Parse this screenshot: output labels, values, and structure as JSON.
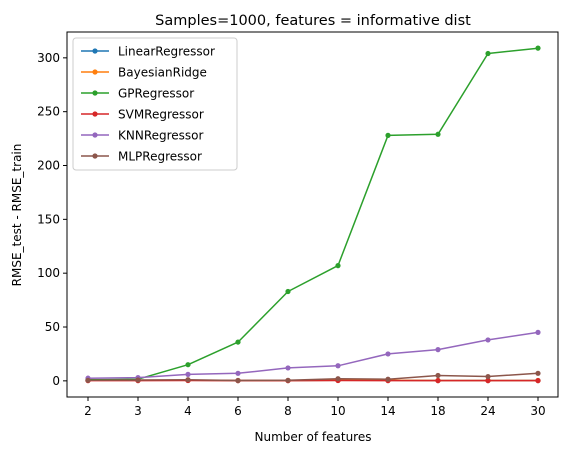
{
  "chart_data": {
    "type": "line",
    "title": "Samples=1000, features = informative dist",
    "xlabel": "Number of features",
    "ylabel": "RMSE_test - RMSE_train",
    "categories": [
      "2",
      "3",
      "4",
      "6",
      "8",
      "10",
      "14",
      "18",
      "24",
      "30"
    ],
    "ylim": [
      -15,
      324
    ],
    "yticks": [
      0,
      50,
      100,
      150,
      200,
      250,
      300
    ],
    "grid": false,
    "legend": "top-left",
    "series": [
      {
        "name": "LinearRegressor",
        "color": "#1f77b4",
        "values": [
          0.5,
          0.5,
          0.5,
          0.3,
          0.3,
          0.5,
          0.5,
          0.3,
          0.3,
          0.3
        ]
      },
      {
        "name": "BayesianRidge",
        "color": "#ff7f0e",
        "values": [
          0.5,
          0.5,
          0.5,
          0.3,
          0.3,
          0.5,
          0.5,
          0.3,
          0.3,
          0.3
        ]
      },
      {
        "name": "GPRegressor",
        "color": "#2ca02c",
        "values": [
          1.0,
          1.5,
          15,
          36,
          83,
          107,
          228,
          229,
          304,
          309
        ]
      },
      {
        "name": "SVMRegressor",
        "color": "#d62728",
        "values": [
          0.2,
          0.2,
          0.3,
          0.2,
          0.2,
          0.3,
          0.2,
          0.2,
          0.2,
          0.2
        ]
      },
      {
        "name": "KNNRegressor",
        "color": "#9467bd",
        "values": [
          2.5,
          3.0,
          6.0,
          7.0,
          12,
          14,
          25,
          29,
          38,
          45
        ]
      },
      {
        "name": "MLPRegressor",
        "color": "#8c564b",
        "values": [
          0.5,
          0.8,
          1.0,
          0.3,
          0.5,
          2.0,
          1.5,
          5.0,
          4.0,
          7.0
        ]
      }
    ]
  }
}
